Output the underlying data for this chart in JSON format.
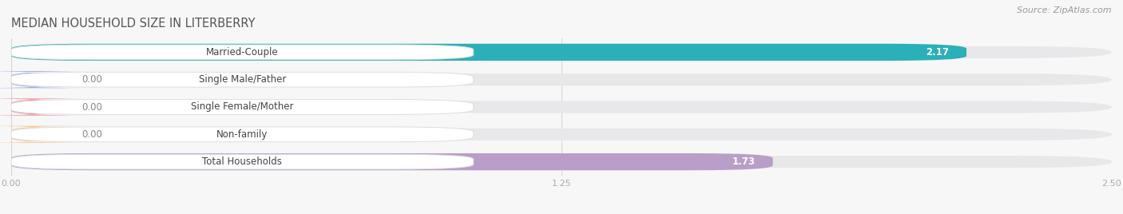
{
  "title": "MEDIAN HOUSEHOLD SIZE IN LITERBERRY",
  "source": "Source: ZipAtlas.com",
  "categories": [
    "Married-Couple",
    "Single Male/Father",
    "Single Female/Mother",
    "Non-family",
    "Total Households"
  ],
  "values": [
    2.17,
    0.0,
    0.0,
    0.0,
    1.73
  ],
  "bar_colors": [
    "#2ab0b8",
    "#a0aedc",
    "#f0899a",
    "#f5c992",
    "#b89ec8"
  ],
  "bar_bg_color": "#e8e8ea",
  "label_box_bg": "#ffffff",
  "label_box_edge": "#dddddd",
  "xlim": [
    0,
    2.5
  ],
  "xticks": [
    0.0,
    1.25,
    2.5
  ],
  "xtick_labels": [
    "0.00",
    "1.25",
    "2.50"
  ],
  "title_fontsize": 10.5,
  "source_fontsize": 8,
  "category_fontsize": 8.5,
  "value_label_fontsize": 8.5,
  "background_color": "#f7f7f7",
  "title_color": "#555555",
  "source_color": "#999999",
  "tick_color": "#aaaaaa",
  "value_color_inside": "#ffffff",
  "value_color_outside": "#888888",
  "grid_color": "#cccccc"
}
